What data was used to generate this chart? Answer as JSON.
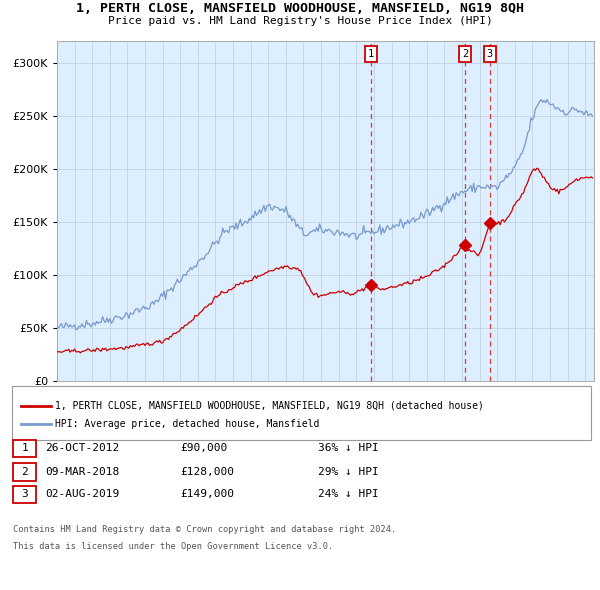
{
  "title": "1, PERTH CLOSE, MANSFIELD WOODHOUSE, MANSFIELD, NG19 8QH",
  "subtitle": "Price paid vs. HM Land Registry's House Price Index (HPI)",
  "legend_property": "1, PERTH CLOSE, MANSFIELD WOODHOUSE, MANSFIELD, NG19 8QH (detached house)",
  "legend_hpi": "HPI: Average price, detached house, Mansfield",
  "footer1": "Contains HM Land Registry data © Crown copyright and database right 2024.",
  "footer2": "This data is licensed under the Open Government Licence v3.0.",
  "table_rows": [
    {
      "num": "1",
      "date": "26-OCT-2012",
      "price": "£90,000",
      "pct": "36% ↓ HPI"
    },
    {
      "num": "2",
      "date": "09-MAR-2018",
      "price": "£128,000",
      "pct": "29% ↓ HPI"
    },
    {
      "num": "3",
      "date": "02-AUG-2019",
      "price": "£149,000",
      "pct": "24% ↓ HPI"
    }
  ],
  "hpi_color": "#7799cc",
  "property_color": "#cc0000",
  "bg_color": "#ddeeff",
  "plot_bg": "#ffffff",
  "grid_color": "#bbccdd",
  "vline_color": "#ee3333",
  "label_box_edge": "#cc0000",
  "ylim": [
    0,
    320000
  ],
  "yticks": [
    0,
    50000,
    100000,
    150000,
    200000,
    250000,
    300000
  ],
  "xstart": 1995.0,
  "xend": 2025.5,
  "p1_year": 2012.833,
  "p1_price": 90000,
  "p2_year": 2018.167,
  "p2_price": 128000,
  "p3_year": 2019.583,
  "p3_price": 149000,
  "hpi_anchors": {
    "1995.0": 50000,
    "1997.0": 54000,
    "1999.0": 62000,
    "2000.5": 72000,
    "2002.0": 95000,
    "2003.5": 120000,
    "2004.5": 140000,
    "2005.5": 148000,
    "2007.0": 165000,
    "2008.0": 160000,
    "2009.0": 138000,
    "2010.0": 142000,
    "2011.0": 140000,
    "2012.0": 136000,
    "2013.0": 140000,
    "2014.0": 145000,
    "2015.0": 150000,
    "2016.0": 157000,
    "2017.0": 168000,
    "2018.0": 178000,
    "2019.0": 183000,
    "2020.0": 182000,
    "2021.0": 200000,
    "2021.5": 218000,
    "2022.0": 248000,
    "2022.5": 265000,
    "2023.0": 262000,
    "2023.5": 256000,
    "2024.0": 253000,
    "2024.5": 256000,
    "2025.2": 250000
  },
  "prop_anchors": {
    "1995.0": 27000,
    "1997.0": 28500,
    "1999.0": 31000,
    "2001.0": 37000,
    "2002.0": 48000,
    "2003.0": 62000,
    "2004.0": 78000,
    "2005.0": 88000,
    "2006.0": 95000,
    "2007.0": 103000,
    "2008.0": 108000,
    "2008.8": 105000,
    "2009.5": 82000,
    "2010.0": 80000,
    "2010.5": 82000,
    "2011.0": 84000,
    "2011.5": 82000,
    "2012.0": 83000,
    "2012.833": 90000,
    "2013.0": 88000,
    "2013.5": 86000,
    "2014.0": 88000,
    "2015.0": 92000,
    "2016.0": 98000,
    "2017.0": 108000,
    "2018.167": 128000,
    "2018.5": 122000,
    "2019.0": 118000,
    "2019.583": 149000,
    "2020.0": 148000,
    "2020.5": 152000,
    "2021.0": 165000,
    "2021.5": 178000,
    "2022.0": 198000,
    "2022.3": 200000,
    "2022.5": 195000,
    "2023.0": 183000,
    "2023.5": 178000,
    "2024.0": 183000,
    "2024.5": 190000,
    "2025.2": 192000
  }
}
